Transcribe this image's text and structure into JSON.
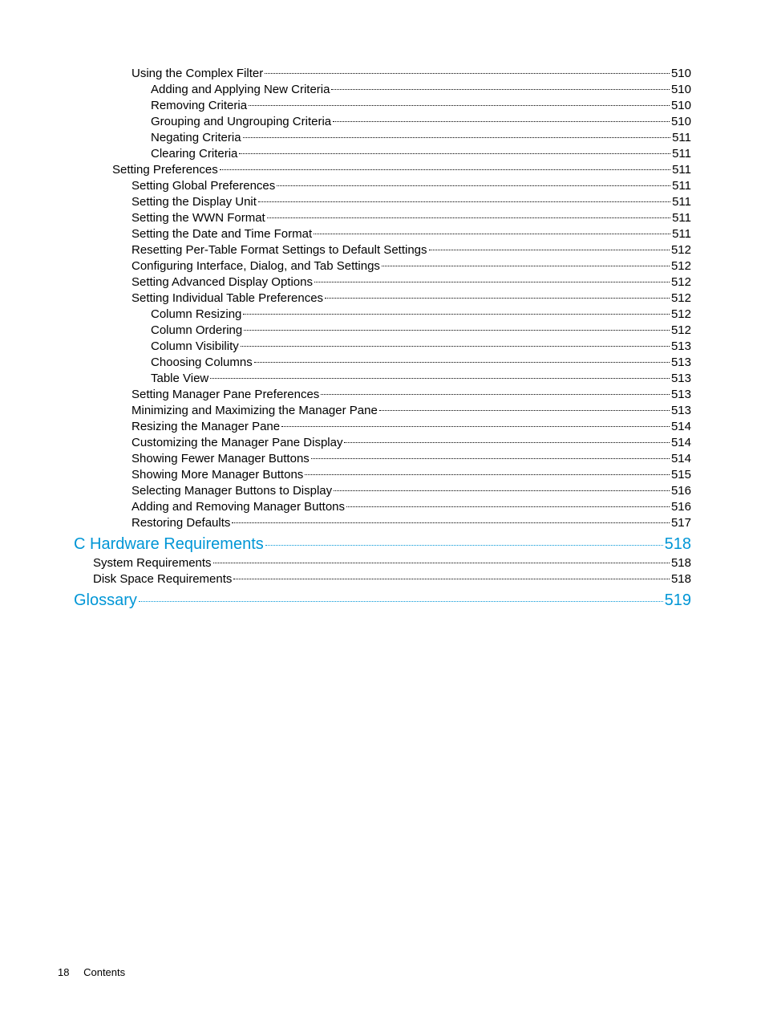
{
  "colors": {
    "text": "#000000",
    "link": "#0096d6",
    "background": "#ffffff"
  },
  "typography": {
    "body_fontsize_pt": 11,
    "section_fontsize_pt": 15,
    "footer_fontsize_pt": 10,
    "font_family": "Arial"
  },
  "footer": {
    "page_number": "18",
    "label": "Contents"
  },
  "entries": [
    {
      "title": "Using the Complex Filter",
      "page": "510",
      "indent": 3,
      "type": "normal"
    },
    {
      "title": "Adding and Applying New Criteria",
      "page": "510",
      "indent": 4,
      "type": "normal"
    },
    {
      "title": "Removing Criteria",
      "page": "510",
      "indent": 4,
      "type": "normal"
    },
    {
      "title": "Grouping and Ungrouping Criteria",
      "page": "510",
      "indent": 4,
      "type": "normal"
    },
    {
      "title": "Negating Criteria",
      "page": "511",
      "indent": 4,
      "type": "normal"
    },
    {
      "title": "Clearing Criteria",
      "page": "511",
      "indent": 4,
      "type": "normal"
    },
    {
      "title": "Setting Preferences",
      "page": "511",
      "indent": 2,
      "type": "normal"
    },
    {
      "title": "Setting Global Preferences",
      "page": "511",
      "indent": 3,
      "type": "normal"
    },
    {
      "title": "Setting the Display Unit",
      "page": "511",
      "indent": 3,
      "type": "normal"
    },
    {
      "title": "Setting the WWN Format",
      "page": "511",
      "indent": 3,
      "type": "normal"
    },
    {
      "title": "Setting the Date and Time Format",
      "page": "511",
      "indent": 3,
      "type": "normal"
    },
    {
      "title": "Resetting Per-Table Format Settings to Default Settings",
      "page": "512",
      "indent": 3,
      "type": "normal"
    },
    {
      "title": "Configuring Interface, Dialog, and Tab Settings",
      "page": "512",
      "indent": 3,
      "type": "normal"
    },
    {
      "title": "Setting Advanced Display Options",
      "page": "512",
      "indent": 3,
      "type": "normal"
    },
    {
      "title": "Setting Individual Table Preferences",
      "page": "512",
      "indent": 3,
      "type": "normal"
    },
    {
      "title": "Column Resizing",
      "page": "512",
      "indent": 4,
      "type": "normal"
    },
    {
      "title": "Column Ordering",
      "page": "512",
      "indent": 4,
      "type": "normal"
    },
    {
      "title": "Column Visibility",
      "page": "513",
      "indent": 4,
      "type": "normal"
    },
    {
      "title": "Choosing Columns",
      "page": "513",
      "indent": 4,
      "type": "normal"
    },
    {
      "title": "Table View",
      "page": "513",
      "indent": 4,
      "type": "normal"
    },
    {
      "title": "Setting Manager Pane Preferences",
      "page": "513",
      "indent": 3,
      "type": "normal"
    },
    {
      "title": "Minimizing and Maximizing the Manager Pane",
      "page": "513",
      "indent": 3,
      "type": "normal"
    },
    {
      "title": "Resizing the Manager Pane",
      "page": "514",
      "indent": 3,
      "type": "normal"
    },
    {
      "title": "Customizing the Manager Pane Display",
      "page": "514",
      "indent": 3,
      "type": "normal"
    },
    {
      "title": "Showing Fewer Manager Buttons",
      "page": "514",
      "indent": 3,
      "type": "normal"
    },
    {
      "title": "Showing More Manager Buttons",
      "page": "515",
      "indent": 3,
      "type": "normal"
    },
    {
      "title": "Selecting Manager Buttons to Display",
      "page": "516",
      "indent": 3,
      "type": "normal"
    },
    {
      "title": "Adding and Removing Manager Buttons",
      "page": "516",
      "indent": 3,
      "type": "normal"
    },
    {
      "title": "Restoring Defaults",
      "page": "517",
      "indent": 3,
      "type": "normal"
    },
    {
      "title": "C Hardware Requirements",
      "page": "518",
      "indent": 0,
      "type": "section"
    },
    {
      "title": "System Requirements",
      "page": "518",
      "indent": 1,
      "type": "normal"
    },
    {
      "title": "Disk Space Requirements",
      "page": "518",
      "indent": 1,
      "type": "normal"
    },
    {
      "title": "Glossary",
      "page": "519",
      "indent": 0,
      "type": "section"
    }
  ]
}
